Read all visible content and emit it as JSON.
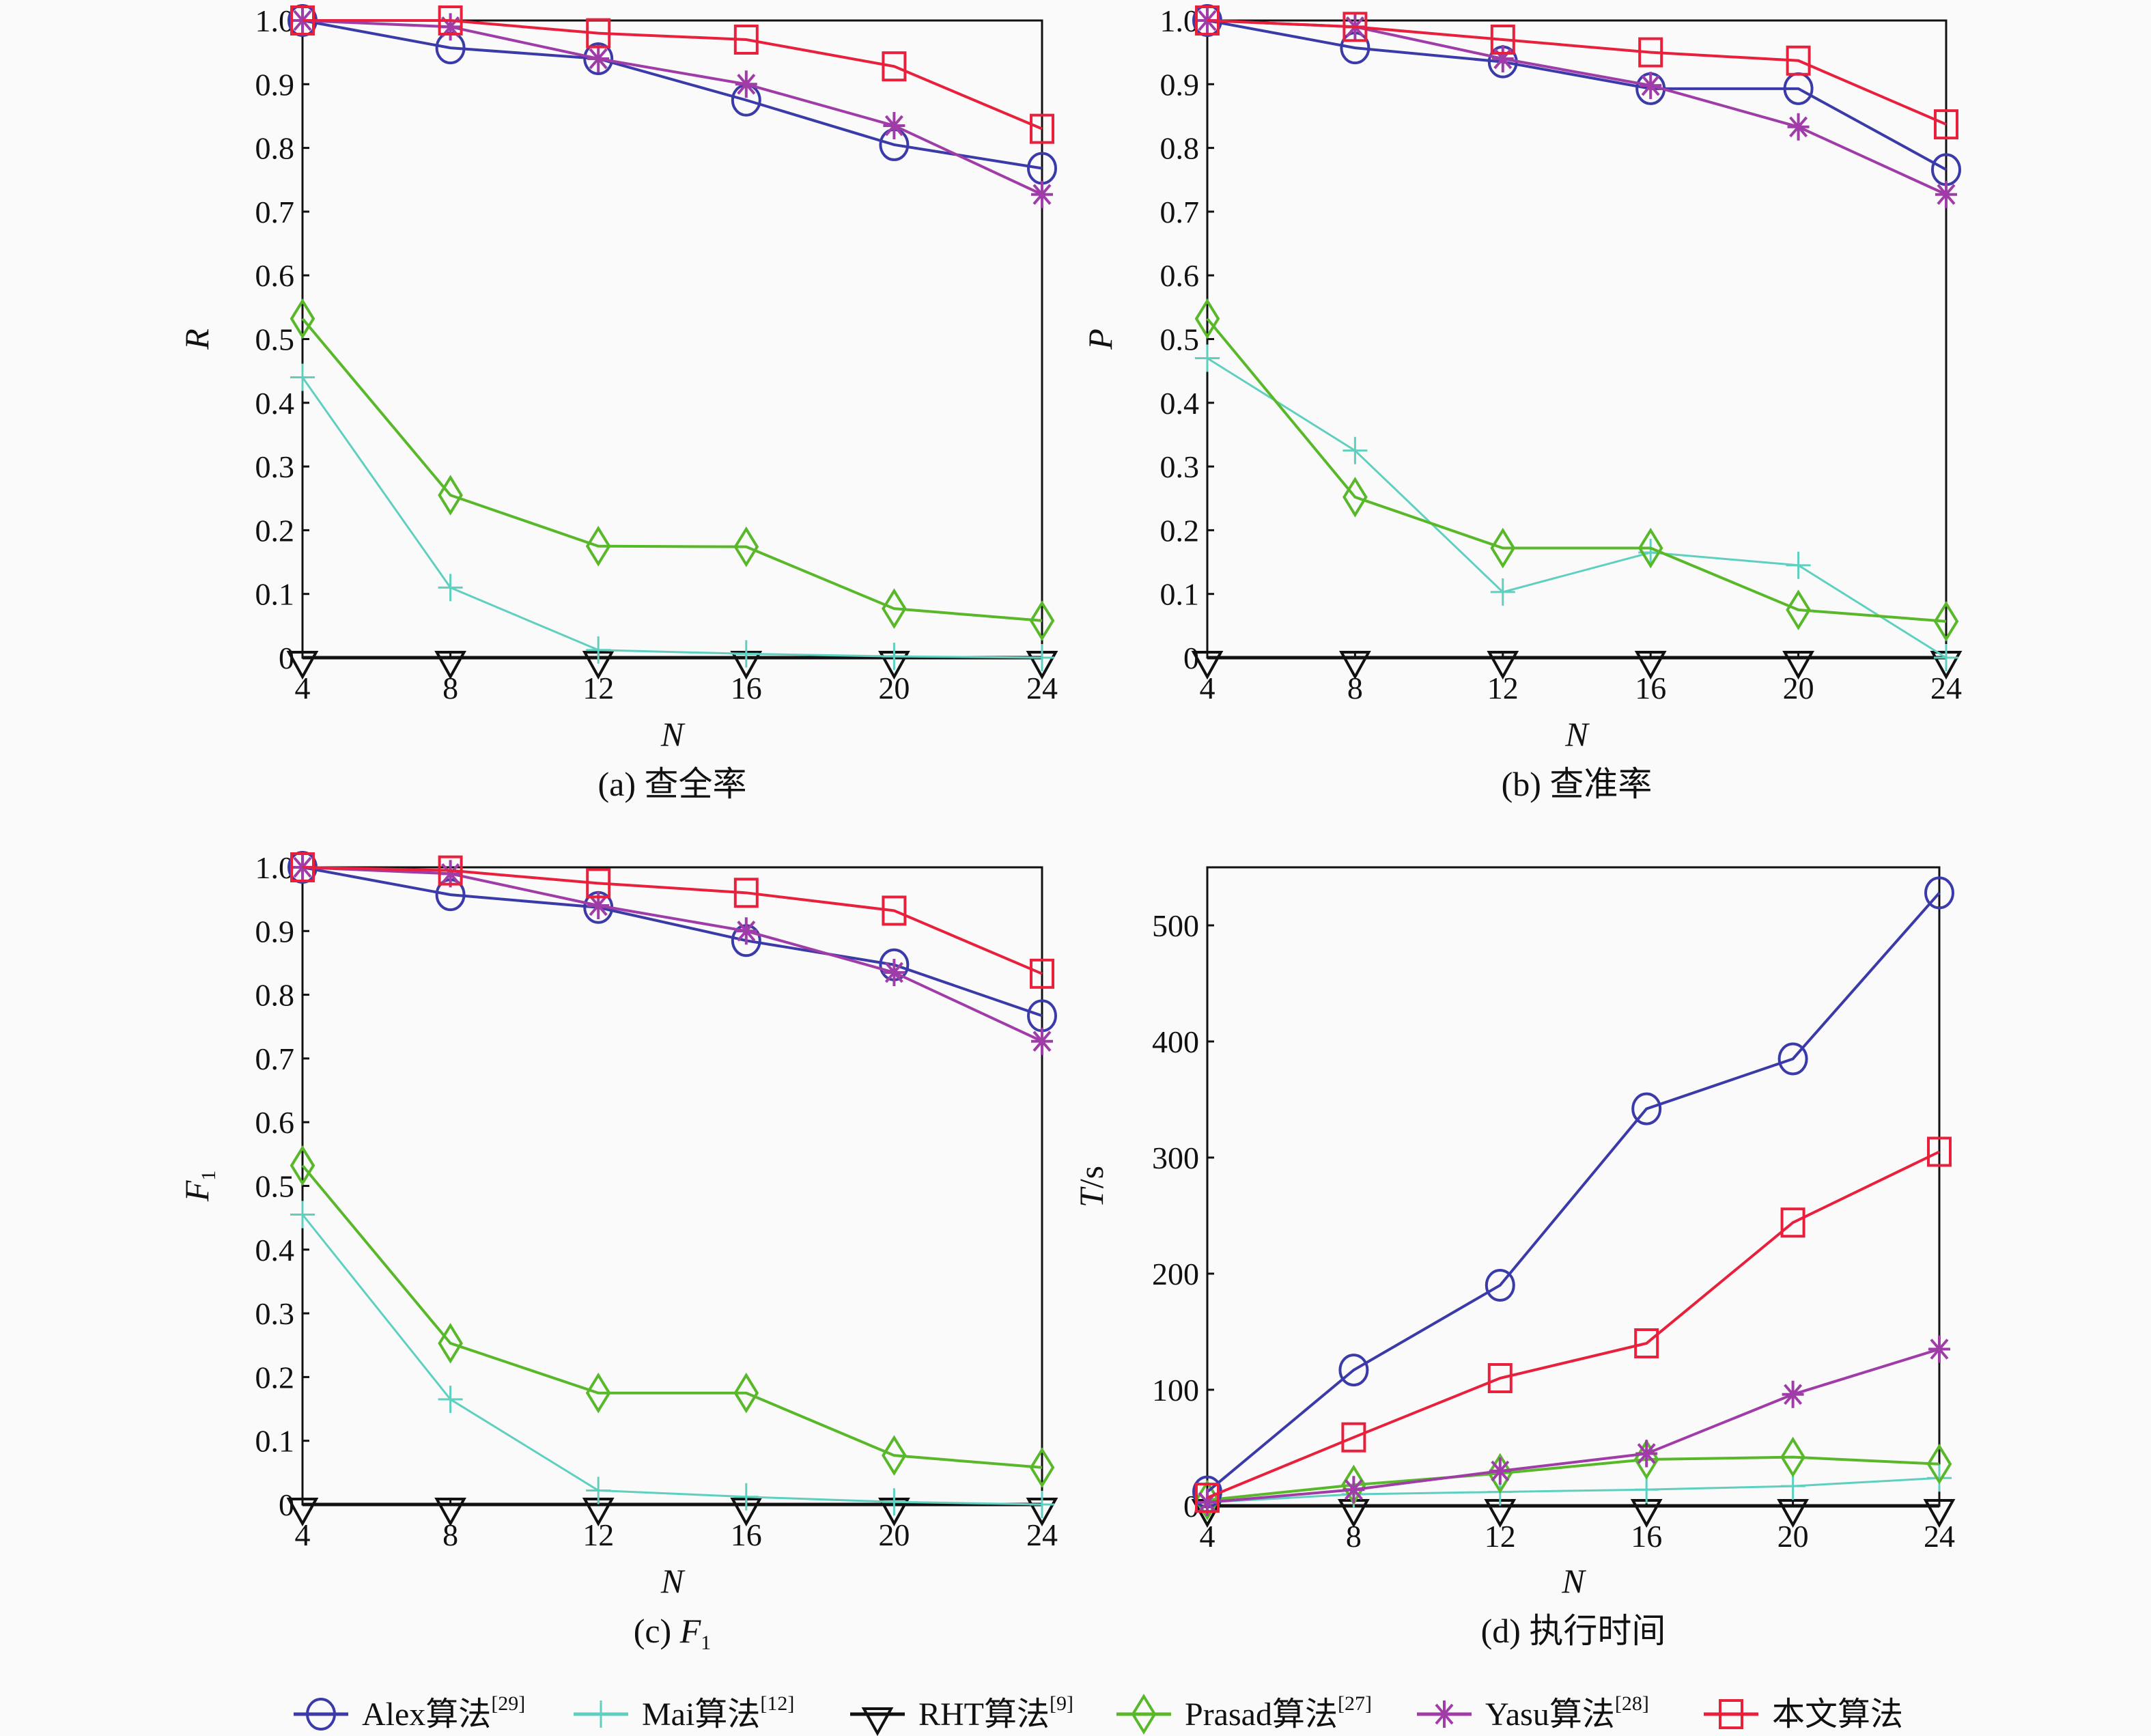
{
  "chart_data": {
    "type": "line",
    "x": [
      4,
      8,
      12,
      16,
      20,
      24
    ],
    "legend": {
      "placement": "bottom",
      "entries": [
        {
          "key": "alex",
          "label": "Alex算法",
          "ref": "[29]",
          "color": "#3a3aa8",
          "marker": "circle"
        },
        {
          "key": "mai",
          "label": "Mai算法",
          "ref": "[12]",
          "color": "#5fd0c0",
          "marker": "plus"
        },
        {
          "key": "rht",
          "label": "RHT算法",
          "ref": "[9]",
          "color": "#111111",
          "marker": "triangle-down"
        },
        {
          "key": "prasad",
          "label": "Prasad算法",
          "ref": "[27]",
          "color": "#58b82a",
          "marker": "diamond"
        },
        {
          "key": "yasu",
          "label": "Yasu算法",
          "ref": "[28]",
          "color": "#a03ca8",
          "marker": "star"
        },
        {
          "key": "ours",
          "label": "本文算法",
          "ref": "",
          "color": "#e8203c",
          "marker": "square"
        }
      ]
    },
    "panels": [
      {
        "id": "a",
        "caption": "(a) 查全率",
        "xlabel": "N",
        "ylabel": "R",
        "ylim": [
          0,
          1.0
        ],
        "yticks": [
          "0",
          "0.1",
          "0.2",
          "0.3",
          "0.4",
          "0.5",
          "0.6",
          "0.7",
          "0.8",
          "0.9",
          "1.0"
        ],
        "xticks": [
          "4",
          "8",
          "12",
          "16",
          "20",
          "24"
        ],
        "grid": false,
        "series": [
          {
            "key": "alex",
            "values": [
              1.0,
              0.957,
              0.94,
              0.875,
              0.805,
              0.768
            ]
          },
          {
            "key": "mai",
            "values": [
              0.44,
              0.11,
              0.012,
              0.006,
              0.002,
              0.0
            ]
          },
          {
            "key": "rht",
            "values": [
              0,
              0,
              0,
              0,
              0,
              0
            ]
          },
          {
            "key": "prasad",
            "values": [
              0.532,
              0.255,
              0.175,
              0.174,
              0.077,
              0.058
            ]
          },
          {
            "key": "yasu",
            "values": [
              1.0,
              0.99,
              0.94,
              0.9,
              0.835,
              0.727
            ]
          },
          {
            "key": "ours",
            "values": [
              1.0,
              1.0,
              0.98,
              0.97,
              0.928,
              0.83
            ]
          }
        ]
      },
      {
        "id": "b",
        "caption": "(b) 查准率",
        "xlabel": "N",
        "ylabel": "P",
        "ylim": [
          0,
          1.0
        ],
        "yticks": [
          "0",
          "0.1",
          "0.2",
          "0.3",
          "0.4",
          "0.5",
          "0.6",
          "0.7",
          "0.8",
          "0.9",
          "1.0"
        ],
        "xticks": [
          "4",
          "8",
          "12",
          "16",
          "20",
          "24"
        ],
        "grid": false,
        "series": [
          {
            "key": "alex",
            "values": [
              1.0,
              0.957,
              0.935,
              0.893,
              0.893,
              0.766
            ]
          },
          {
            "key": "mai",
            "values": [
              0.47,
              0.325,
              0.103,
              0.165,
              0.145,
              0.0
            ]
          },
          {
            "key": "rht",
            "values": [
              0,
              0,
              0,
              0,
              0,
              0
            ]
          },
          {
            "key": "prasad",
            "values": [
              0.532,
              0.252,
              0.172,
              0.172,
              0.075,
              0.057
            ]
          },
          {
            "key": "yasu",
            "values": [
              1.0,
              0.99,
              0.94,
              0.898,
              0.833,
              0.727
            ]
          },
          {
            "key": "ours",
            "values": [
              1.0,
              0.99,
              0.97,
              0.95,
              0.937,
              0.837
            ]
          }
        ]
      },
      {
        "id": "c",
        "caption_prefix": "(c) ",
        "caption_main": "F",
        "caption_sub": "1",
        "xlabel": "N",
        "ylabel": "F",
        "ylabel_sub": "1",
        "ylim": [
          0,
          1.0
        ],
        "yticks": [
          "0",
          "0.1",
          "0.2",
          "0.3",
          "0.4",
          "0.5",
          "0.6",
          "0.7",
          "0.8",
          "0.9",
          "1.0"
        ],
        "xticks": [
          "4",
          "8",
          "12",
          "16",
          "20",
          "24"
        ],
        "grid": false,
        "series": [
          {
            "key": "alex",
            "values": [
              1.0,
              0.957,
              0.937,
              0.885,
              0.847,
              0.767
            ]
          },
          {
            "key": "mai",
            "values": [
              0.455,
              0.165,
              0.022,
              0.012,
              0.004,
              0.0
            ]
          },
          {
            "key": "rht",
            "values": [
              0,
              0,
              0,
              0,
              0,
              0
            ]
          },
          {
            "key": "prasad",
            "values": [
              0.532,
              0.253,
              0.175,
              0.175,
              0.077,
              0.058
            ]
          },
          {
            "key": "yasu",
            "values": [
              1.0,
              0.99,
              0.94,
              0.9,
              0.835,
              0.727
            ]
          },
          {
            "key": "ours",
            "values": [
              1.0,
              0.995,
              0.975,
              0.96,
              0.932,
              0.833
            ]
          }
        ]
      },
      {
        "id": "d",
        "caption": "(d) 执行时间",
        "xlabel": "N",
        "ylabel": "T/s",
        "ylim": [
          0,
          550
        ],
        "yticks": [
          "0",
          "100",
          "200",
          "300",
          "400",
          "500"
        ],
        "ytick_values": [
          0,
          100,
          200,
          300,
          400,
          500
        ],
        "xticks": [
          "4",
          "8",
          "12",
          "16",
          "20",
          "24"
        ],
        "grid": false,
        "series": [
          {
            "key": "alex",
            "values": [
              12,
              117,
              190,
              342,
              385,
              528
            ]
          },
          {
            "key": "mai",
            "values": [
              3,
              10,
              12,
              14,
              17,
              24
            ]
          },
          {
            "key": "rht",
            "values": [
              0,
              0,
              0,
              0,
              0,
              0
            ]
          },
          {
            "key": "prasad",
            "values": [
              5,
              18,
              28,
              40,
              42,
              36
            ]
          },
          {
            "key": "yasu",
            "values": [
              3,
              14,
              30,
              45,
              96,
              135
            ]
          },
          {
            "key": "ours",
            "values": [
              7,
              59,
              110,
              140,
              244,
              305
            ]
          }
        ]
      }
    ]
  }
}
